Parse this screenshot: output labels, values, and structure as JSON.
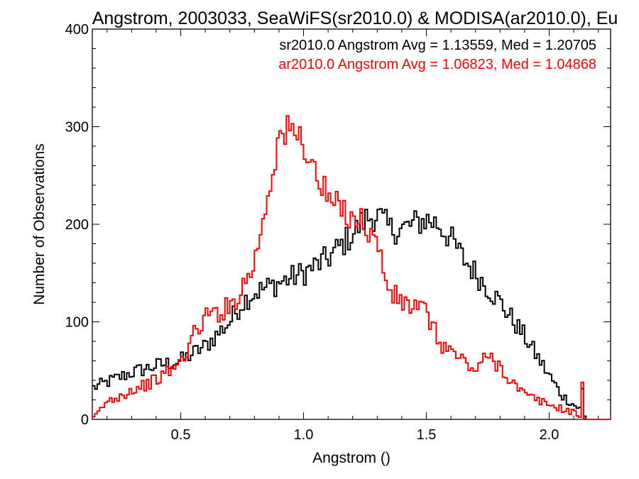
{
  "chart_data": {
    "type": "line",
    "title": "Angstrom, 2003033, SeaWiFS(sr2010.0) & MODISA(ar2010.0), Eu",
    "xlabel": "Angstrom ()",
    "ylabel": "Number of Observations",
    "xlim": [
      0.14,
      2.25
    ],
    "ylim": [
      0,
      400
    ],
    "x_ticks": [
      0.5,
      1.0,
      1.5,
      2.0
    ],
    "x_tick_labels": [
      "0.5",
      "1.0",
      "1.5",
      "2.0"
    ],
    "y_ticks": [
      0,
      100,
      200,
      300,
      400
    ],
    "y_tick_labels": [
      "0",
      "100",
      "200",
      "300",
      "400"
    ],
    "legend_placement": "top-right",
    "legend": [
      "sr2010.0 Angstrom Avg = 1.13559, Med = 1.20705",
      "ar2010.0 Angstrom Avg = 1.06823, Med = 1.04868"
    ],
    "series": [
      {
        "color": "#000000",
        "style": "step",
        "x": [
          0.14,
          0.2,
          0.3,
          0.4,
          0.5,
          0.6,
          0.7,
          0.75,
          0.8,
          0.9,
          1.0,
          1.1,
          1.2,
          1.25,
          1.3,
          1.35,
          1.4,
          1.45,
          1.5,
          1.55,
          1.6,
          1.65,
          1.7,
          1.8,
          1.9,
          2.0,
          2.05,
          2.1,
          2.13,
          2.14,
          2.145,
          2.15,
          2.25
        ],
        "y": [
          32,
          38,
          48,
          55,
          60,
          75,
          100,
          120,
          130,
          140,
          150,
          165,
          190,
          205,
          210,
          195,
          195,
          200,
          205,
          200,
          185,
          165,
          150,
          120,
          85,
          45,
          25,
          15,
          10,
          50,
          3,
          0,
          0
        ]
      },
      {
        "color": "#ff0000",
        "style": "step",
        "x": [
          0.14,
          0.2,
          0.3,
          0.4,
          0.5,
          0.55,
          0.6,
          0.7,
          0.75,
          0.8,
          0.85,
          0.9,
          0.95,
          1.0,
          1.05,
          1.1,
          1.15,
          1.2,
          1.25,
          1.3,
          1.35,
          1.4,
          1.5,
          1.55,
          1.6,
          1.7,
          1.75,
          1.8,
          1.85,
          1.9,
          2.0,
          2.1,
          2.13,
          2.14,
          2.145,
          2.15,
          2.25
        ],
        "y": [
          0,
          18,
          30,
          40,
          58,
          85,
          105,
          115,
          135,
          160,
          225,
          290,
          295,
          285,
          250,
          225,
          215,
          210,
          200,
          180,
          130,
          120,
          110,
          80,
          70,
          50,
          65,
          55,
          38,
          25,
          15,
          7,
          3,
          80,
          1,
          0,
          0
        ]
      }
    ]
  }
}
